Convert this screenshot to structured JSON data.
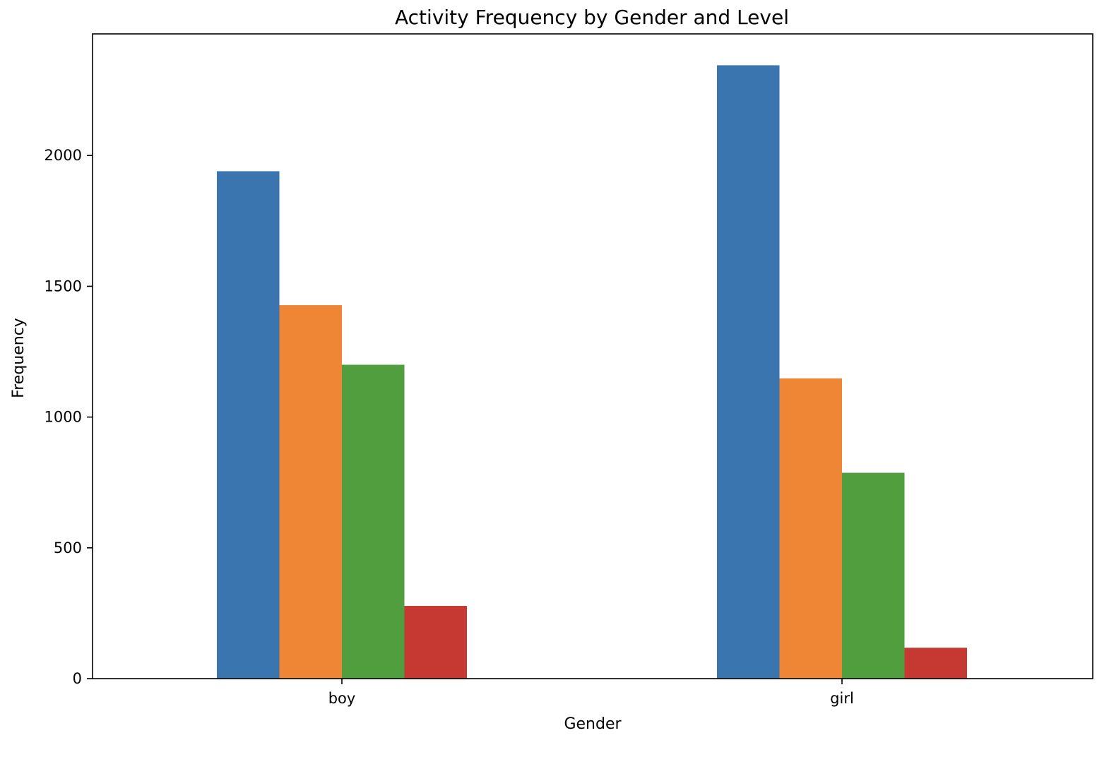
{
  "chart_data": {
    "type": "bar",
    "title": "Activity Frequency by Gender and Level",
    "xlabel": "Gender",
    "ylabel": "Frequency",
    "categories": [
      "boy",
      "girl"
    ],
    "series": [
      {
        "values": [
          1940,
          2345
        ],
        "color": "#3a75af"
      },
      {
        "values": [
          1428,
          1148
        ],
        "color": "#ef8636"
      },
      {
        "values": [
          1200,
          787
        ],
        "color": "#519e3e"
      },
      {
        "values": [
          278,
          118
        ],
        "color": "#c53932"
      }
    ],
    "ylim": [
      0,
      2465
    ],
    "yticks": [
      0,
      500,
      1000,
      1500,
      2000
    ],
    "ytick_labels": [
      "0",
      "500",
      "1000",
      "1500",
      "2000"
    ],
    "grid": false,
    "legend": "none"
  }
}
